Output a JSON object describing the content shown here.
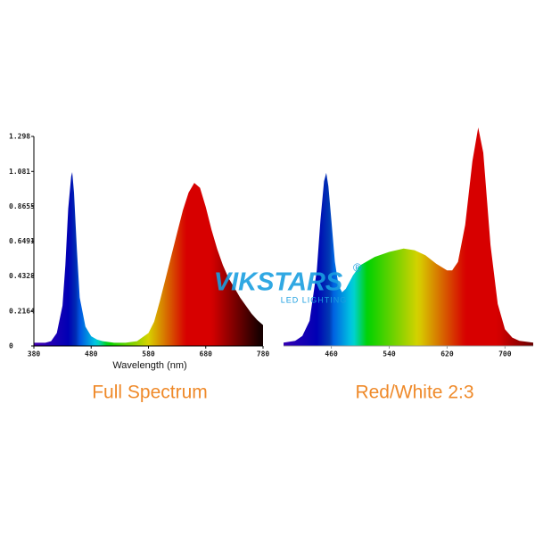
{
  "chart_data": [
    {
      "type": "area",
      "caption": "Full Spectrum",
      "x_label": "Wavelength (nm)",
      "x": [
        380,
        390,
        400,
        410,
        420,
        430,
        435,
        440,
        445,
        447,
        450,
        455,
        460,
        470,
        480,
        490,
        500,
        520,
        540,
        560,
        580,
        590,
        600,
        610,
        620,
        630,
        640,
        650,
        660,
        670,
        680,
        690,
        700,
        710,
        720,
        730,
        740,
        750,
        760,
        770,
        780
      ],
      "values": [
        0.02,
        0.02,
        0.02,
        0.03,
        0.08,
        0.25,
        0.5,
        0.85,
        1.05,
        1.077,
        0.95,
        0.6,
        0.3,
        0.12,
        0.06,
        0.04,
        0.03,
        0.02,
        0.02,
        0.03,
        0.08,
        0.15,
        0.28,
        0.42,
        0.56,
        0.7,
        0.84,
        0.95,
        1.01,
        0.98,
        0.86,
        0.72,
        0.6,
        0.5,
        0.42,
        0.36,
        0.3,
        0.25,
        0.2,
        0.16,
        0.13
      ],
      "xlim": [
        380,
        780
      ],
      "xticks": [
        380,
        480,
        580,
        680,
        780
      ],
      "ylim": [
        0,
        1.298
      ],
      "yticks": [
        0,
        0.2164,
        0.4328,
        0.6491,
        0.8655,
        1.081,
        1.298
      ]
    },
    {
      "type": "area",
      "caption": "Red/White 2:3",
      "x": [
        394,
        410,
        420,
        430,
        440,
        445,
        450,
        453,
        456,
        460,
        465,
        470,
        475,
        480,
        490,
        500,
        520,
        540,
        560,
        575,
        590,
        605,
        620,
        627,
        635,
        645,
        655,
        663,
        670,
        680,
        690,
        700,
        710,
        720,
        739
      ],
      "values": [
        0.02,
        0.03,
        0.06,
        0.15,
        0.45,
        0.75,
        0.98,
        1.03,
        0.95,
        0.75,
        0.5,
        0.36,
        0.32,
        0.34,
        0.42,
        0.48,
        0.53,
        0.56,
        0.58,
        0.57,
        0.54,
        0.49,
        0.45,
        0.45,
        0.5,
        0.72,
        1.1,
        1.3,
        1.15,
        0.6,
        0.25,
        0.1,
        0.05,
        0.03,
        0.02
      ],
      "xlim": [
        394,
        739
      ],
      "xticks": [
        460,
        540,
        620,
        700
      ],
      "ylim": [
        0,
        1.3
      ]
    }
  ],
  "watermark": {
    "brand": "VIKSTARS",
    "mark": "®",
    "tagline": "LED LIGHTING"
  }
}
